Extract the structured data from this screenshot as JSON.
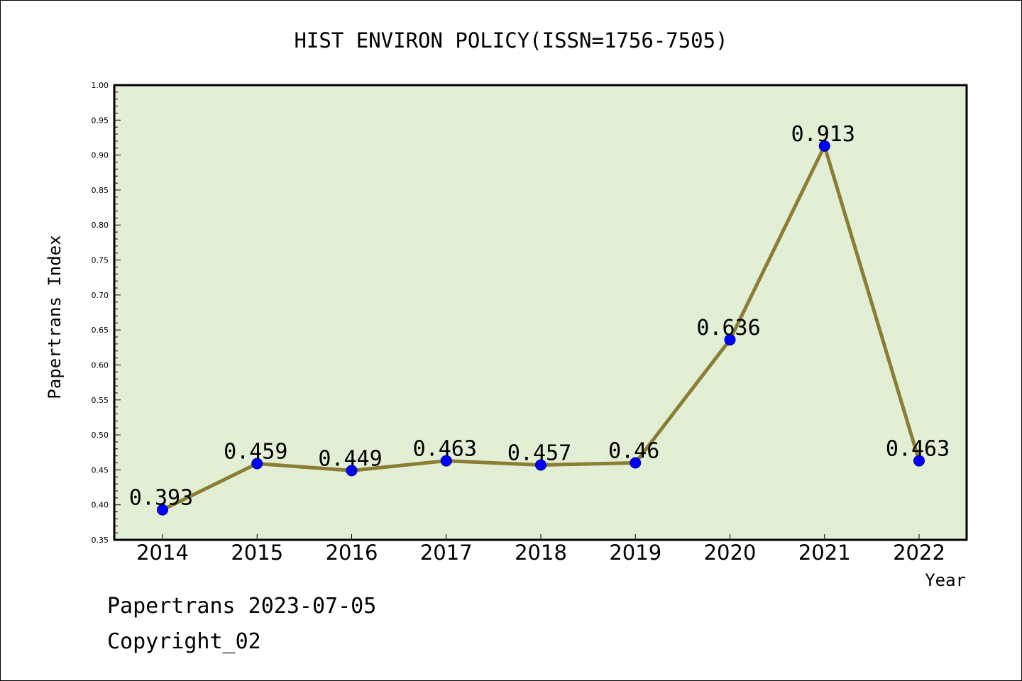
{
  "chart_data": {
    "type": "line",
    "title": "HIST ENVIRON POLICY(ISSN=1756-7505)",
    "xlabel": "Year",
    "ylabel": "Papertrans Index",
    "categories": [
      "2014",
      "2015",
      "2016",
      "2017",
      "2018",
      "2019",
      "2020",
      "2021",
      "2022"
    ],
    "values": [
      0.393,
      0.459,
      0.449,
      0.463,
      0.457,
      0.46,
      0.636,
      0.913,
      0.463
    ],
    "data_labels": [
      "0.393",
      "0.459",
      "0.449",
      "0.463",
      "0.457",
      "0.46",
      "0.636",
      "0.913",
      "0.463"
    ],
    "ylim": [
      0.35,
      1.0
    ],
    "yticks": [
      "0.35",
      "0.40",
      "0.45",
      "0.50",
      "0.55",
      "0.60",
      "0.65",
      "0.70",
      "0.75",
      "0.80",
      "0.85",
      "0.90",
      "0.95",
      "1.00"
    ],
    "grid": false,
    "legend": "none",
    "colors": {
      "plot_background": "#e2efd5",
      "line": "#8b7d34",
      "marker": "#0000ff"
    }
  },
  "footer": {
    "date_text": "Papertrans 2023-07-05",
    "copyright_text": "Copyright_02"
  }
}
